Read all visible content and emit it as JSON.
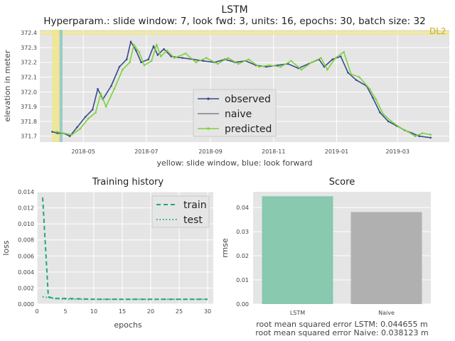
{
  "figure": {
    "title": "LSTM",
    "subtitle": "Hyperparam.: slide window: 7, look fwd: 3, units: 16, epochs: 30, batch size: 32"
  },
  "colors": {
    "panel_bg": "#e5e5e5",
    "grid": "#ffffff",
    "observed": "#3a4a8c",
    "naive": "#808080",
    "predicted": "#7dd23a",
    "highlight_yellow": "#f0e68c",
    "highlight_blue": "#8fc7c3",
    "dl_label": "#c8b020",
    "train_test": "#20a878",
    "bar_lstm": "#88c9b0",
    "bar_naive": "#b0b0b0",
    "text": "#444444"
  },
  "chart_data": [
    {
      "type": "line",
      "title": "",
      "xlabel": "yellow: slide window, blue: look forward",
      "ylabel": "elevation in meter",
      "x_ticks": [
        "2018-05",
        "2018-07",
        "2018-09",
        "2018-11",
        "2019-01",
        "2019-03"
      ],
      "y_ticks": [
        "371.7",
        "371.8",
        "371.9",
        "372.0",
        "372.1",
        "372.2",
        "372.3",
        "372.4"
      ],
      "ylim": [
        371.66,
        372.42
      ],
      "xlim": [
        "2018-03-20",
        "2019-04-20"
      ],
      "threshold_label": "DL2",
      "threshold_value": 372.4,
      "window_slide": [
        "2018-04-01",
        "2018-04-08"
      ],
      "window_forward": [
        "2018-04-08",
        "2018-04-11"
      ],
      "legend": [
        "observed",
        "naive",
        "predicted"
      ],
      "legend_position": "center-right",
      "grid": true,
      "observed_points": [
        [
          "2018-04-01",
          371.73
        ],
        [
          "2018-04-06",
          371.72
        ],
        [
          "2018-04-12",
          371.72
        ],
        [
          "2018-04-18",
          371.7
        ],
        [
          "2018-04-25",
          371.76
        ],
        [
          "2018-05-03",
          371.83
        ],
        [
          "2018-05-10",
          371.88
        ],
        [
          "2018-05-15",
          372.02
        ],
        [
          "2018-05-20",
          371.95
        ],
        [
          "2018-05-28",
          372.04
        ],
        [
          "2018-06-05",
          372.17
        ],
        [
          "2018-06-12",
          372.22
        ],
        [
          "2018-06-16",
          372.34
        ],
        [
          "2018-06-21",
          372.28
        ],
        [
          "2018-06-26",
          372.2
        ],
        [
          "2018-07-03",
          372.22
        ],
        [
          "2018-07-08",
          372.31
        ],
        [
          "2018-07-12",
          372.25
        ],
        [
          "2018-07-18",
          372.29
        ],
        [
          "2018-07-25",
          372.24
        ],
        [
          "2018-08-05",
          372.23
        ],
        [
          "2018-08-15",
          372.22
        ],
        [
          "2018-08-25",
          372.21
        ],
        [
          "2018-09-05",
          372.2
        ],
        [
          "2018-09-15",
          372.22
        ],
        [
          "2018-09-25",
          372.2
        ],
        [
          "2018-10-05",
          372.21
        ],
        [
          "2018-10-15",
          372.18
        ],
        [
          "2018-10-25",
          372.17
        ],
        [
          "2018-11-05",
          372.18
        ],
        [
          "2018-11-15",
          372.19
        ],
        [
          "2018-11-25",
          372.16
        ],
        [
          "2018-12-05",
          372.19
        ],
        [
          "2018-12-15",
          372.22
        ],
        [
          "2018-12-20",
          372.17
        ],
        [
          "2018-12-28",
          372.22
        ],
        [
          "2019-01-05",
          372.24
        ],
        [
          "2019-01-12",
          372.13
        ],
        [
          "2019-01-20",
          372.08
        ],
        [
          "2019-01-30",
          372.04
        ],
        [
          "2019-02-05",
          371.96
        ],
        [
          "2019-02-12",
          371.86
        ],
        [
          "2019-02-20",
          371.8
        ],
        [
          "2019-02-28",
          371.77
        ],
        [
          "2019-03-08",
          371.74
        ],
        [
          "2019-03-15",
          371.72
        ],
        [
          "2019-03-22",
          371.7
        ],
        [
          "2019-04-02",
          371.69
        ]
      ],
      "predicted_points": [
        [
          "2018-04-05",
          371.73
        ],
        [
          "2018-04-12",
          371.72
        ],
        [
          "2018-04-20",
          371.71
        ],
        [
          "2018-04-28",
          371.75
        ],
        [
          "2018-05-06",
          371.82
        ],
        [
          "2018-05-13",
          371.86
        ],
        [
          "2018-05-18",
          371.99
        ],
        [
          "2018-05-23",
          371.9
        ],
        [
          "2018-05-31",
          372.02
        ],
        [
          "2018-06-08",
          372.15
        ],
        [
          "2018-06-15",
          372.2
        ],
        [
          "2018-06-19",
          372.32
        ],
        [
          "2018-06-24",
          372.27
        ],
        [
          "2018-06-29",
          372.18
        ],
        [
          "2018-07-06",
          372.21
        ],
        [
          "2018-07-11",
          372.32
        ],
        [
          "2018-07-15",
          372.24
        ],
        [
          "2018-07-21",
          372.28
        ],
        [
          "2018-07-28",
          372.23
        ],
        [
          "2018-08-08",
          372.26
        ],
        [
          "2018-08-18",
          372.2
        ],
        [
          "2018-08-28",
          372.23
        ],
        [
          "2018-09-08",
          372.19
        ],
        [
          "2018-09-18",
          372.23
        ],
        [
          "2018-09-28",
          372.19
        ],
        [
          "2018-10-08",
          372.22
        ],
        [
          "2018-10-18",
          372.17
        ],
        [
          "2018-10-28",
          372.18
        ],
        [
          "2018-11-08",
          372.17
        ],
        [
          "2018-11-18",
          372.21
        ],
        [
          "2018-11-28",
          372.15
        ],
        [
          "2018-12-08",
          372.2
        ],
        [
          "2018-12-17",
          372.23
        ],
        [
          "2018-12-23",
          372.15
        ],
        [
          "2018-12-31",
          372.23
        ],
        [
          "2019-01-08",
          372.27
        ],
        [
          "2019-01-15",
          372.12
        ],
        [
          "2019-01-23",
          372.1
        ],
        [
          "2019-02-02",
          372.02
        ],
        [
          "2019-02-08",
          371.95
        ],
        [
          "2019-02-15",
          371.85
        ],
        [
          "2019-02-23",
          371.8
        ],
        [
          "2019-03-03",
          371.76
        ],
        [
          "2019-03-11",
          371.73
        ],
        [
          "2019-03-18",
          371.7
        ],
        [
          "2019-03-25",
          371.72
        ],
        [
          "2019-04-02",
          371.71
        ]
      ]
    },
    {
      "type": "line",
      "title": "Training history",
      "xlabel": "epochs",
      "ylabel": "loss",
      "x_ticks": [
        "0",
        "5",
        "10",
        "15",
        "20",
        "25",
        "30"
      ],
      "y_ticks": [
        "0.000",
        "0.002",
        "0.004",
        "0.006",
        "0.008",
        "0.010",
        "0.012",
        "0.014"
      ],
      "xlim": [
        0,
        31
      ],
      "ylim": [
        0,
        0.014
      ],
      "legend": [
        "train",
        "test"
      ],
      "legend_position": "top-right",
      "grid": true,
      "series": [
        {
          "name": "train",
          "style": "dashed",
          "x": [
            1,
            2,
            3,
            5,
            10,
            15,
            20,
            25,
            30
          ],
          "y": [
            0.0133,
            0.0009,
            0.0007,
            0.0007,
            0.0006,
            0.0006,
            0.0006,
            0.0006,
            0.0006
          ]
        },
        {
          "name": "test",
          "style": "dotted",
          "x": [
            1,
            2,
            3,
            5,
            10,
            15,
            20,
            25,
            30
          ],
          "y": [
            0.0009,
            0.0008,
            0.0007,
            0.0006,
            0.0006,
            0.0006,
            0.0006,
            0.0006,
            0.0006
          ]
        }
      ]
    },
    {
      "type": "bar",
      "title": "Score",
      "xlabel": "",
      "ylabel": "rmse",
      "categories": [
        "LSTM",
        "Naive"
      ],
      "values": [
        0.044655,
        0.038123
      ],
      "y_ticks": [
        "0.00",
        "0.01",
        "0.02",
        "0.03",
        "0.04"
      ],
      "ylim": [
        0,
        0.0465
      ],
      "grid": true,
      "annotations": [
        "root mean squared error LSTM: 0.044655 m",
        "root mean squared error Naive: 0.038123 m"
      ]
    }
  ]
}
